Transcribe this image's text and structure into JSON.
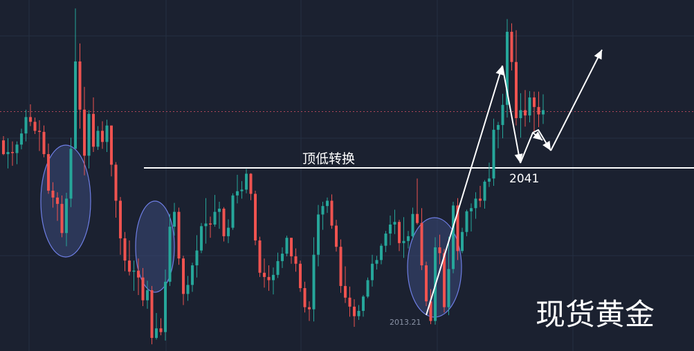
{
  "chart_data": {
    "type": "candlestick",
    "instrument_label": "现货黄金",
    "annotations": {
      "support_line_label": "顶低转换",
      "support_level_label": "2041",
      "low_marker_label": "2013.21"
    },
    "colors": {
      "background": "#1b2130",
      "grid": "#243042",
      "up": "#26a69a",
      "down": "#ef5350",
      "line": "#ffffff",
      "ellipse_fill": "#3a4a7a",
      "ellipse_stroke": "#6f7fe6",
      "dotted_line": "#b2475a"
    },
    "y_scale": {
      "price_a": 2013.21,
      "price_b": 2041
    },
    "candles": [
      [
        2046.2,
        2047.0,
        2043.4,
        2043.6
      ],
      [
        2043.6,
        2046.6,
        2040.9,
        2044.0
      ],
      [
        2044.0,
        2046.0,
        2041.4,
        2043.8
      ],
      [
        2043.8,
        2046.0,
        2041.7,
        2045.4
      ],
      [
        2045.4,
        2048.4,
        2044.5,
        2047.5
      ],
      [
        2047.5,
        2052.0,
        2046.0,
        2050.6
      ],
      [
        2050.6,
        2053.0,
        2048.9,
        2049.7
      ],
      [
        2049.7,
        2050.5,
        2047.4,
        2048.0
      ],
      [
        2048.0,
        2050.0,
        2044.2,
        2047.8
      ],
      [
        2047.8,
        2049.0,
        2043.0,
        2043.6
      ],
      [
        2043.6,
        2045.6,
        2036.1,
        2036.7
      ],
      [
        2036.7,
        2038.3,
        2033.5,
        2035.4
      ],
      [
        2035.4,
        2036.4,
        2031.0,
        2034.2
      ],
      [
        2034.2,
        2035.8,
        2027.9,
        2028.7
      ],
      [
        2028.7,
        2036.3,
        2026.2,
        2035.2
      ],
      [
        2035.2,
        2046.7,
        2033.6,
        2044.6
      ],
      [
        2044.6,
        2071.1,
        2044.6,
        2061.1
      ],
      [
        2061.1,
        2064.5,
        2048.4,
        2052.0
      ],
      [
        2052.0,
        2056.3,
        2039.6,
        2043.3
      ],
      [
        2043.3,
        2051.9,
        2040.9,
        2051.2
      ],
      [
        2051.2,
        2054.3,
        2044.0,
        2045.0
      ],
      [
        2045.0,
        2048.9,
        2044.4,
        2048.0
      ],
      [
        2048.0,
        2049.8,
        2044.6,
        2045.9
      ],
      [
        2045.9,
        2050.1,
        2044.0,
        2049.0
      ],
      [
        2049.0,
        2049.0,
        2039.4,
        2041.6
      ],
      [
        2041.6,
        2042.1,
        2031.6,
        2034.8
      ],
      [
        2034.8,
        2035.5,
        2024.6,
        2027.7
      ],
      [
        2027.7,
        2028.9,
        2021.5,
        2023.5
      ],
      [
        2023.5,
        2027.3,
        2020.7,
        2021.4
      ],
      [
        2021.4,
        2023.5,
        2017.8,
        2021.6
      ],
      [
        2021.6,
        2023.9,
        2017.0,
        2020.3
      ],
      [
        2020.3,
        2022.1,
        2014.9,
        2016.0
      ],
      [
        2016.0,
        2019.7,
        2014.4,
        2017.9
      ],
      [
        2017.9,
        2018.7,
        2007.7,
        2008.9
      ],
      [
        2008.9,
        2013.6,
        2008.6,
        2010.7
      ],
      [
        2010.7,
        2012.6,
        2009.4,
        2010.0
      ],
      [
        2010.0,
        2021.8,
        2008.4,
        2019.5
      ],
      [
        2019.5,
        2032.3,
        2018.7,
        2029.9
      ],
      [
        2029.9,
        2034.4,
        2028.2,
        2032.7
      ],
      [
        2032.7,
        2033.5,
        2022.7,
        2023.9
      ],
      [
        2023.9,
        2024.4,
        2015.1,
        2017.2
      ],
      [
        2017.2,
        2020.6,
        2015.9,
        2018.9
      ],
      [
        2018.9,
        2023.1,
        2017.6,
        2022.6
      ],
      [
        2022.6,
        2028.3,
        2020.3,
        2025.4
      ],
      [
        2025.4,
        2030.6,
        2024.9,
        2030.0
      ],
      [
        2030.0,
        2035.3,
        2026.7,
        2030.5
      ],
      [
        2030.5,
        2031.8,
        2027.8,
        2030.3
      ],
      [
        2030.3,
        2035.9,
        2029.9,
        2032.7
      ],
      [
        2032.7,
        2034.6,
        2029.5,
        2033.3
      ],
      [
        2033.3,
        2033.6,
        2027.1,
        2028.1
      ],
      [
        2028.1,
        2031.3,
        2026.8,
        2029.7
      ],
      [
        2029.7,
        2036.2,
        2029.3,
        2035.8
      ],
      [
        2035.8,
        2039.7,
        2034.3,
        2036.6
      ],
      [
        2036.6,
        2038.5,
        2035.2,
        2036.9
      ],
      [
        2036.9,
        2040.8,
        2036.2,
        2039.9
      ],
      [
        2039.9,
        2040.0,
        2034.9,
        2036.1
      ],
      [
        2036.1,
        2036.7,
        2026.4,
        2027.3
      ],
      [
        2027.3,
        2028.0,
        2020.4,
        2021.2
      ],
      [
        2021.2,
        2023.9,
        2018.4,
        2020.4
      ],
      [
        2020.4,
        2022.6,
        2017.8,
        2019.8
      ],
      [
        2019.8,
        2022.2,
        2017.1,
        2020.8
      ],
      [
        2020.8,
        2025.0,
        2020.2,
        2023.4
      ],
      [
        2023.4,
        2026.0,
        2022.1,
        2024.8
      ],
      [
        2024.8,
        2028.2,
        2024.3,
        2027.8
      ],
      [
        2027.8,
        2027.8,
        2022.9,
        2024.3
      ],
      [
        2024.3,
        2025.8,
        2021.4,
        2022.9
      ],
      [
        2022.9,
        2023.5,
        2017.6,
        2018.3
      ],
      [
        2018.3,
        2019.5,
        2013.7,
        2014.7
      ],
      [
        2014.7,
        2015.8,
        2012.1,
        2014.3
      ],
      [
        2014.3,
        2027.9,
        2012.0,
        2024.6
      ],
      [
        2024.6,
        2034.0,
        2022.4,
        2032.2
      ],
      [
        2032.2,
        2034.6,
        2029.3,
        2033.8
      ],
      [
        2033.8,
        2035.4,
        2032.5,
        2034.8
      ],
      [
        2034.8,
        2036.0,
        2029.5,
        2030.1
      ],
      [
        2030.1,
        2031.2,
        2025.2,
        2026.1
      ],
      [
        2026.1,
        2027.5,
        2017.4,
        2018.7
      ],
      [
        2018.7,
        2022.4,
        2015.5,
        2016.5
      ],
      [
        2016.5,
        2018.6,
        2012.9,
        2014.8
      ],
      [
        2014.8,
        2016.2,
        2011.0,
        2013.0
      ],
      [
        2013.0,
        2015.1,
        2012.3,
        2014.0
      ],
      [
        2014.0,
        2017.0,
        2012.9,
        2016.7
      ],
      [
        2016.7,
        2020.3,
        2016.4,
        2019.8
      ],
      [
        2019.8,
        2024.6,
        2018.6,
        2022.9
      ],
      [
        2022.9,
        2024.4,
        2021.8,
        2023.6
      ],
      [
        2023.6,
        2026.7,
        2022.8,
        2026.3
      ],
      [
        2026.3,
        2029.1,
        2025.1,
        2028.6
      ],
      [
        2028.6,
        2032.0,
        2026.4,
        2030.3
      ],
      [
        2030.3,
        2033.1,
        2028.5,
        2030.8
      ],
      [
        2030.8,
        2031.2,
        2025.3,
        2026.8
      ],
      [
        2026.8,
        2031.7,
        2024.0,
        2027.2
      ],
      [
        2027.2,
        2029.1,
        2025.8,
        2028.1
      ],
      [
        2028.1,
        2033.5,
        2027.5,
        2032.3
      ],
      [
        2032.3,
        2039.0,
        2030.3,
        2030.6
      ],
      [
        2030.6,
        2033.4,
        2021.7,
        2022.6
      ],
      [
        2022.6,
        2023.3,
        2014.9,
        2015.8
      ],
      [
        2015.8,
        2018.1,
        2011.5,
        2012.1
      ],
      [
        2012.1,
        2027.9,
        2011.4,
        2026.0
      ],
      [
        2026.0,
        2028.4,
        2022.8,
        2024.9
      ],
      [
        2024.9,
        2025.7,
        2013.7,
        2014.7
      ],
      [
        2014.7,
        2028.0,
        2013.2,
        2021.9
      ],
      [
        2021.9,
        2034.6,
        2021.1,
        2033.9
      ],
      [
        2033.9,
        2035.3,
        2023.6,
        2025.3
      ],
      [
        2025.3,
        2029.7,
        2024.9,
        2028.9
      ],
      [
        2028.9,
        2033.1,
        2028.1,
        2032.8
      ],
      [
        2032.8,
        2034.3,
        2029.0,
        2033.4
      ],
      [
        2033.4,
        2036.4,
        2031.4,
        2035.2
      ],
      [
        2035.2,
        2037.6,
        2033.6,
        2034.8
      ],
      [
        2034.8,
        2038.7,
        2033.3,
        2038.4
      ],
      [
        2038.4,
        2042.0,
        2037.4,
        2039.0
      ],
      [
        2039.0,
        2050.3,
        2037.6,
        2048.2
      ],
      [
        2048.2,
        2049.7,
        2044.7,
        2049.1
      ],
      [
        2049.1,
        2055.0,
        2046.6,
        2052.9
      ],
      [
        2052.9,
        2069.1,
        2050.5,
        2066.7
      ],
      [
        2066.7,
        2068.3,
        2059.4,
        2061.0
      ],
      [
        2061.0,
        2067.0,
        2049.0,
        2050.4
      ],
      [
        2050.4,
        2055.1,
        2046.7,
        2051.9
      ],
      [
        2051.9,
        2055.7,
        2048.8,
        2050.9
      ],
      [
        2050.9,
        2055.5,
        2049.6,
        2054.3
      ],
      [
        2054.3,
        2055.4,
        2047.8,
        2052.5
      ],
      [
        2052.5,
        2055.4,
        2048.7,
        2051.1
      ],
      [
        2051.1,
        2054.9,
        2049.3,
        2051.9
      ]
    ]
  }
}
